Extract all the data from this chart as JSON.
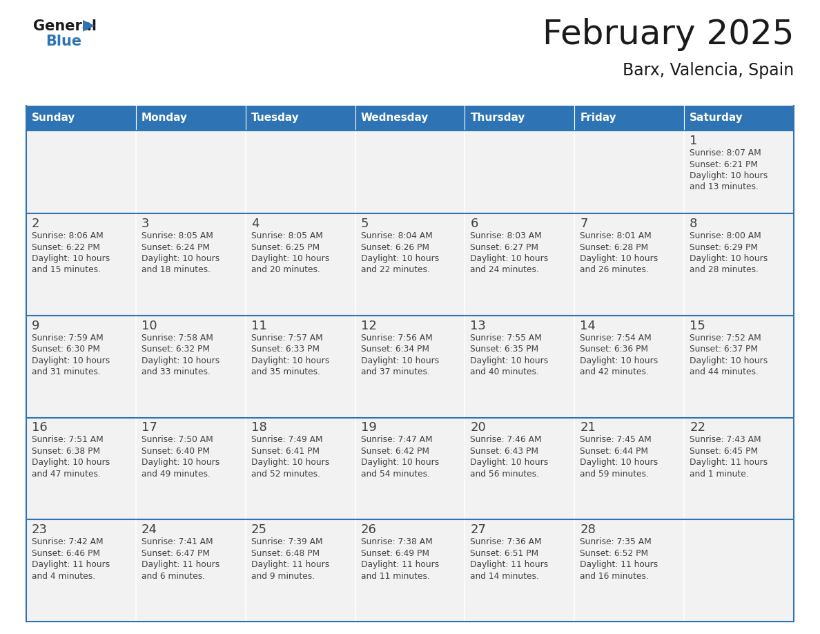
{
  "title": "February 2025",
  "subtitle": "Barx, Valencia, Spain",
  "header_bg": "#2E74B5",
  "header_text_color": "#FFFFFF",
  "cell_bg": "#F2F2F2",
  "day_number_color": "#404040",
  "info_text_color": "#404040",
  "border_color": "#2E74B5",
  "days_of_week": [
    "Sunday",
    "Monday",
    "Tuesday",
    "Wednesday",
    "Thursday",
    "Friday",
    "Saturday"
  ],
  "calendar_data": [
    [
      {
        "day": null,
        "info": null
      },
      {
        "day": null,
        "info": null
      },
      {
        "day": null,
        "info": null
      },
      {
        "day": null,
        "info": null
      },
      {
        "day": null,
        "info": null
      },
      {
        "day": null,
        "info": null
      },
      {
        "day": "1",
        "info": "Sunrise: 8:07 AM\nSunset: 6:21 PM\nDaylight: 10 hours\nand 13 minutes."
      }
    ],
    [
      {
        "day": "2",
        "info": "Sunrise: 8:06 AM\nSunset: 6:22 PM\nDaylight: 10 hours\nand 15 minutes."
      },
      {
        "day": "3",
        "info": "Sunrise: 8:05 AM\nSunset: 6:24 PM\nDaylight: 10 hours\nand 18 minutes."
      },
      {
        "day": "4",
        "info": "Sunrise: 8:05 AM\nSunset: 6:25 PM\nDaylight: 10 hours\nand 20 minutes."
      },
      {
        "day": "5",
        "info": "Sunrise: 8:04 AM\nSunset: 6:26 PM\nDaylight: 10 hours\nand 22 minutes."
      },
      {
        "day": "6",
        "info": "Sunrise: 8:03 AM\nSunset: 6:27 PM\nDaylight: 10 hours\nand 24 minutes."
      },
      {
        "day": "7",
        "info": "Sunrise: 8:01 AM\nSunset: 6:28 PM\nDaylight: 10 hours\nand 26 minutes."
      },
      {
        "day": "8",
        "info": "Sunrise: 8:00 AM\nSunset: 6:29 PM\nDaylight: 10 hours\nand 28 minutes."
      }
    ],
    [
      {
        "day": "9",
        "info": "Sunrise: 7:59 AM\nSunset: 6:30 PM\nDaylight: 10 hours\nand 31 minutes."
      },
      {
        "day": "10",
        "info": "Sunrise: 7:58 AM\nSunset: 6:32 PM\nDaylight: 10 hours\nand 33 minutes."
      },
      {
        "day": "11",
        "info": "Sunrise: 7:57 AM\nSunset: 6:33 PM\nDaylight: 10 hours\nand 35 minutes."
      },
      {
        "day": "12",
        "info": "Sunrise: 7:56 AM\nSunset: 6:34 PM\nDaylight: 10 hours\nand 37 minutes."
      },
      {
        "day": "13",
        "info": "Sunrise: 7:55 AM\nSunset: 6:35 PM\nDaylight: 10 hours\nand 40 minutes."
      },
      {
        "day": "14",
        "info": "Sunrise: 7:54 AM\nSunset: 6:36 PM\nDaylight: 10 hours\nand 42 minutes."
      },
      {
        "day": "15",
        "info": "Sunrise: 7:52 AM\nSunset: 6:37 PM\nDaylight: 10 hours\nand 44 minutes."
      }
    ],
    [
      {
        "day": "16",
        "info": "Sunrise: 7:51 AM\nSunset: 6:38 PM\nDaylight: 10 hours\nand 47 minutes."
      },
      {
        "day": "17",
        "info": "Sunrise: 7:50 AM\nSunset: 6:40 PM\nDaylight: 10 hours\nand 49 minutes."
      },
      {
        "day": "18",
        "info": "Sunrise: 7:49 AM\nSunset: 6:41 PM\nDaylight: 10 hours\nand 52 minutes."
      },
      {
        "day": "19",
        "info": "Sunrise: 7:47 AM\nSunset: 6:42 PM\nDaylight: 10 hours\nand 54 minutes."
      },
      {
        "day": "20",
        "info": "Sunrise: 7:46 AM\nSunset: 6:43 PM\nDaylight: 10 hours\nand 56 minutes."
      },
      {
        "day": "21",
        "info": "Sunrise: 7:45 AM\nSunset: 6:44 PM\nDaylight: 10 hours\nand 59 minutes."
      },
      {
        "day": "22",
        "info": "Sunrise: 7:43 AM\nSunset: 6:45 PM\nDaylight: 11 hours\nand 1 minute."
      }
    ],
    [
      {
        "day": "23",
        "info": "Sunrise: 7:42 AM\nSunset: 6:46 PM\nDaylight: 11 hours\nand 4 minutes."
      },
      {
        "day": "24",
        "info": "Sunrise: 7:41 AM\nSunset: 6:47 PM\nDaylight: 11 hours\nand 6 minutes."
      },
      {
        "day": "25",
        "info": "Sunrise: 7:39 AM\nSunset: 6:48 PM\nDaylight: 11 hours\nand 9 minutes."
      },
      {
        "day": "26",
        "info": "Sunrise: 7:38 AM\nSunset: 6:49 PM\nDaylight: 11 hours\nand 11 minutes."
      },
      {
        "day": "27",
        "info": "Sunrise: 7:36 AM\nSunset: 6:51 PM\nDaylight: 11 hours\nand 14 minutes."
      },
      {
        "day": "28",
        "info": "Sunrise: 7:35 AM\nSunset: 6:52 PM\nDaylight: 11 hours\nand 16 minutes."
      },
      {
        "day": null,
        "info": null
      }
    ]
  ]
}
